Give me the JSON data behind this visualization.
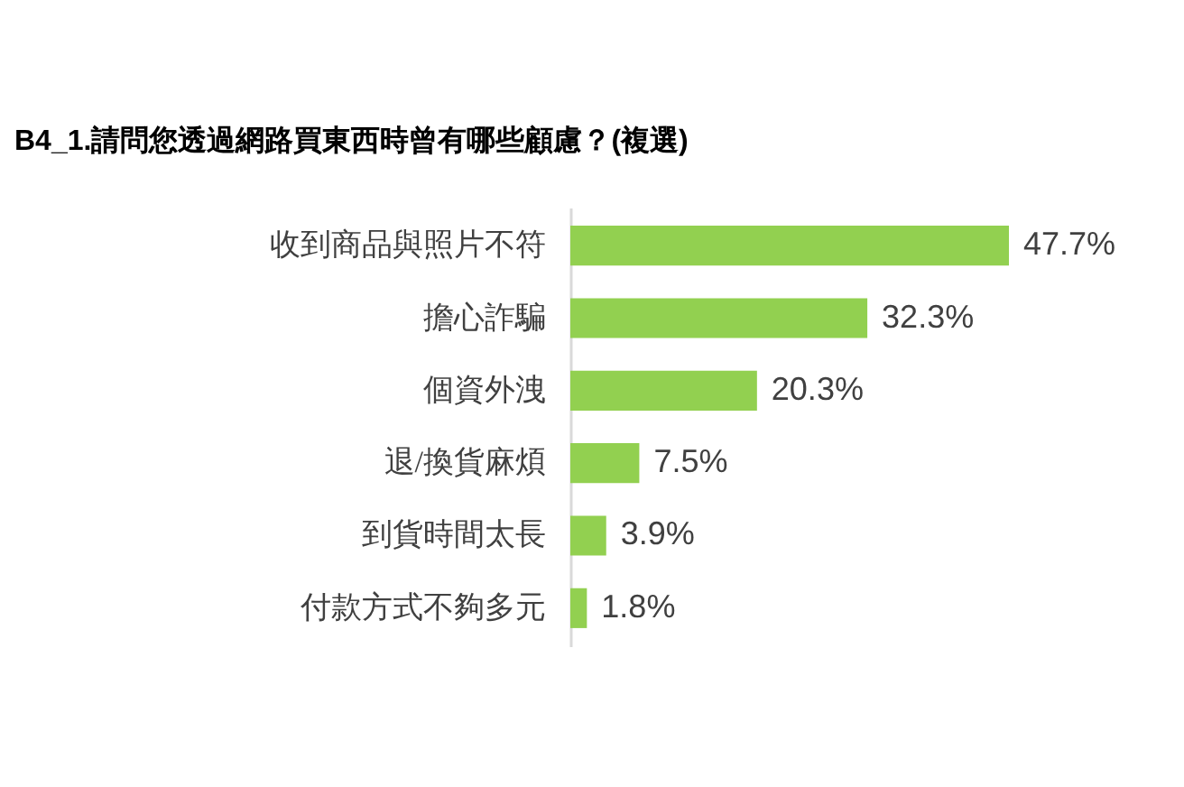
{
  "chart_data": {
    "type": "bar",
    "orientation": "horizontal",
    "title": "B4_1.請問您透過網路買東西時曾有哪些顧慮？(複選)",
    "categories": [
      "收到商品與照片不符",
      "擔心詐騙",
      "個資外洩",
      "退/換貨麻煩",
      "到貨時間太長",
      "付款方式不夠多元"
    ],
    "values": [
      47.7,
      32.3,
      20.3,
      7.5,
      3.9,
      1.8
    ],
    "value_labels": [
      "47.7%",
      "32.3%",
      "20.3%",
      "7.5%",
      "3.9%",
      "1.8%"
    ],
    "color": "#92d050",
    "tick_labels": "y"
  }
}
